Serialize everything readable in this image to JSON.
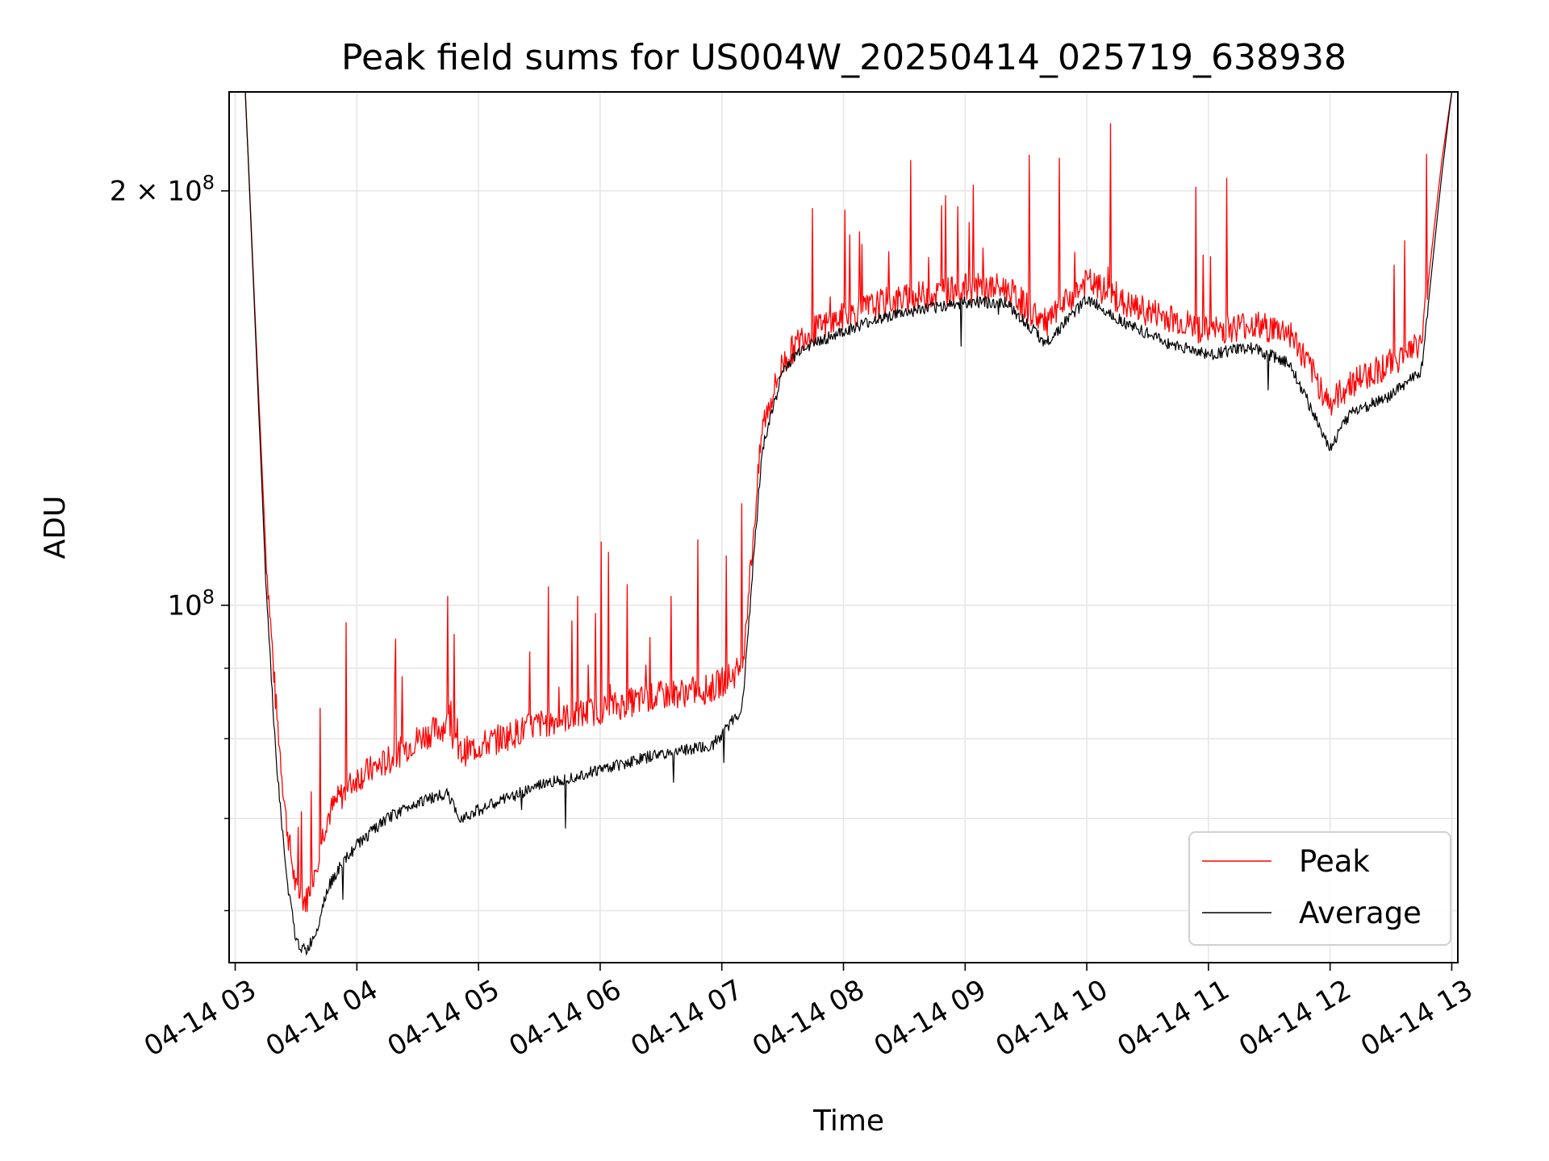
{
  "chart_data": {
    "type": "line",
    "title": "Peak field sums for US004W_20250414_025719_638938",
    "xlabel": "Time",
    "ylabel": "ADU",
    "y_scale": "log",
    "xlim": [
      "2025-04-14 02:57",
      "2025-04-14 13:03"
    ],
    "ylim": [
      55000000,
      236000000
    ],
    "x_tick_labels": [
      "04-14 03",
      "04-14 04",
      "04-14 05",
      "04-14 06",
      "04-14 07",
      "04-14 08",
      "04-14 09",
      "04-14 10",
      "04-14 11",
      "04-14 12",
      "04-14 13"
    ],
    "y_tick_labels": [
      {
        "value": 200000000,
        "mantissa": "2",
        "exponent": "8"
      },
      {
        "value": 100000000,
        "mantissa": "",
        "exponent": "8"
      }
    ],
    "grid": true,
    "legend_position": "lower-right",
    "series": [
      {
        "name": "Peak",
        "color": "#ff0000",
        "x": [
          "2025-04-14 02:59",
          "2025-04-14 03:05",
          "2025-04-14 03:10",
          "2025-04-14 03:15",
          "2025-04-14 03:20",
          "2025-04-14 03:25",
          "2025-04-14 03:30",
          "2025-04-14 03:35",
          "2025-04-14 03:40",
          "2025-04-14 03:45",
          "2025-04-14 03:50",
          "2025-04-14 04:00",
          "2025-04-14 04:15",
          "2025-04-14 04:30",
          "2025-04-14 04:45",
          "2025-04-14 04:50",
          "2025-04-14 05:00",
          "2025-04-14 05:30",
          "2025-04-14 06:00",
          "2025-04-14 06:30",
          "2025-04-14 06:55",
          "2025-04-14 07:10",
          "2025-04-14 07:15",
          "2025-04-14 07:20",
          "2025-04-14 07:30",
          "2025-04-14 07:40",
          "2025-04-14 08:00",
          "2025-04-14 08:20",
          "2025-04-14 08:40",
          "2025-04-14 09:00",
          "2025-04-14 09:20",
          "2025-04-14 09:40",
          "2025-04-14 10:00",
          "2025-04-14 10:20",
          "2025-04-14 10:40",
          "2025-04-14 11:00",
          "2025-04-14 11:20",
          "2025-04-14 11:40",
          "2025-04-14 12:00",
          "2025-04-14 12:10",
          "2025-04-14 12:30",
          "2025-04-14 12:45",
          "2025-04-14 12:55",
          "2025-04-14 13:00"
        ],
        "y": [
          236000000,
          236000000,
          160000000,
          110000000,
          85000000,
          70000000,
          62000000,
          61000000,
          65000000,
          70000000,
          72000000,
          75000000,
          77000000,
          80000000,
          82000000,
          78000000,
          79000000,
          82000000,
          84000000,
          86000000,
          87000000,
          90000000,
          110000000,
          135000000,
          150000000,
          157000000,
          162000000,
          166000000,
          168000000,
          170000000,
          170000000,
          160000000,
          172000000,
          165000000,
          162000000,
          158000000,
          160000000,
          158000000,
          140000000,
          145000000,
          150000000,
          155000000,
          210000000,
          236000000
        ]
      },
      {
        "name": "Average",
        "color": "#000000",
        "x": [
          "2025-04-14 02:59",
          "2025-04-14 03:05",
          "2025-04-14 03:10",
          "2025-04-14 03:15",
          "2025-04-14 03:20",
          "2025-04-14 03:25",
          "2025-04-14 03:30",
          "2025-04-14 03:35",
          "2025-04-14 03:40",
          "2025-04-14 03:45",
          "2025-04-14 03:50",
          "2025-04-14 04:00",
          "2025-04-14 04:15",
          "2025-04-14 04:30",
          "2025-04-14 04:45",
          "2025-04-14 04:50",
          "2025-04-14 05:00",
          "2025-04-14 05:30",
          "2025-04-14 06:00",
          "2025-04-14 06:30",
          "2025-04-14 06:55",
          "2025-04-14 07:10",
          "2025-04-14 07:15",
          "2025-04-14 07:20",
          "2025-04-14 07:30",
          "2025-04-14 07:40",
          "2025-04-14 08:00",
          "2025-04-14 08:20",
          "2025-04-14 08:40",
          "2025-04-14 09:00",
          "2025-04-14 09:20",
          "2025-04-14 09:40",
          "2025-04-14 10:00",
          "2025-04-14 10:20",
          "2025-04-14 10:40",
          "2025-04-14 11:00",
          "2025-04-14 11:20",
          "2025-04-14 11:40",
          "2025-04-14 12:00",
          "2025-04-14 12:10",
          "2025-04-14 12:30",
          "2025-04-14 12:45",
          "2025-04-14 12:55",
          "2025-04-14 13:00"
        ],
        "y": [
          236000000,
          236000000,
          158000000,
          105000000,
          78000000,
          64000000,
          57000000,
          56000000,
          58000000,
          62000000,
          64000000,
          67000000,
          70000000,
          72000000,
          73000000,
          70000000,
          71000000,
          74000000,
          76000000,
          78000000,
          79000000,
          84000000,
          105000000,
          130000000,
          148000000,
          154000000,
          158000000,
          162000000,
          164000000,
          166000000,
          166000000,
          155000000,
          167000000,
          160000000,
          155000000,
          152000000,
          154000000,
          150000000,
          130000000,
          138000000,
          142000000,
          148000000,
          205000000,
          236000000
        ]
      }
    ]
  }
}
